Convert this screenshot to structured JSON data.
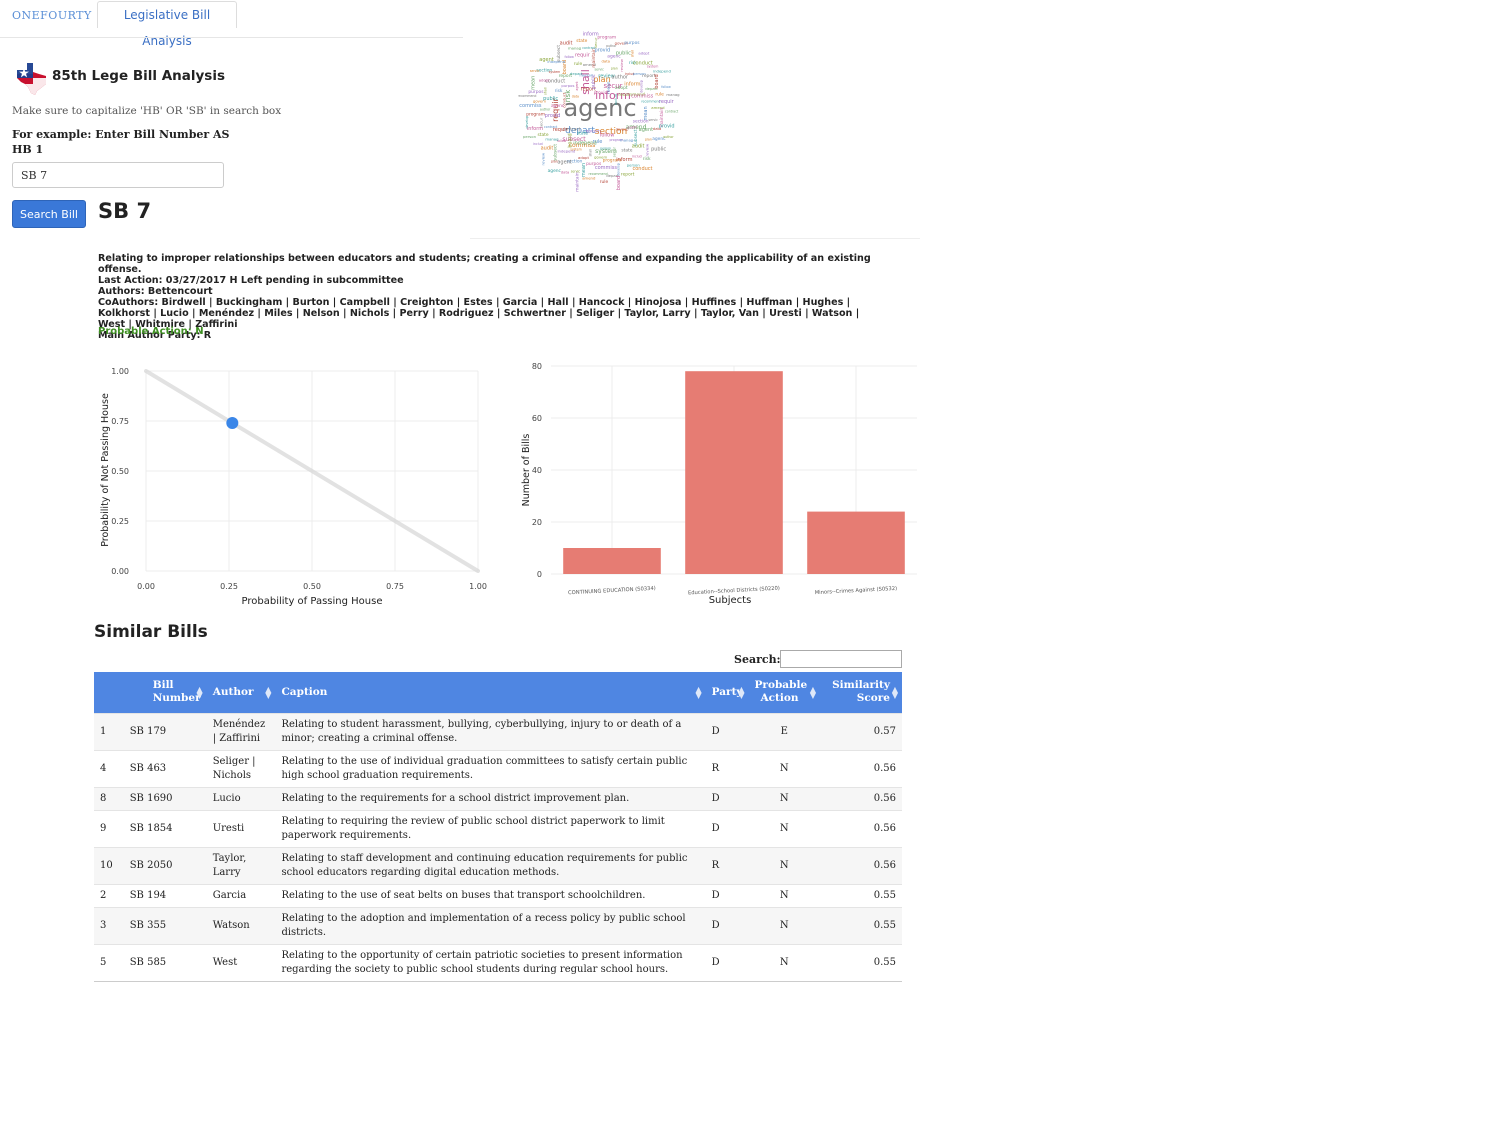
{
  "nav": {
    "brand": "ONEFOURTY",
    "tab": "Legislative Bill Analysis"
  },
  "app": {
    "title": "85th Lege Bill Analysis",
    "hint": "Make sure to capitalize 'HB' OR 'SB' in search box",
    "example": "For example: Enter Bill Number AS HB 1",
    "search_value": "SB 7",
    "search_button": "Search Bill"
  },
  "bill": {
    "number": "SB 7",
    "caption": "Relating to improper relationships between educators and students; creating a criminal offense and expanding the applicability of an existing offense.",
    "last_action": "Last Action: 03/27/2017 H Left pending in subcommittee",
    "authors": "Authors: Bettencourt",
    "coauthors": "CoAuthors: Birdwell | Buckingham | Burton | Campbell | Creighton | Estes | Garcia | Hall | Hancock | Hinojosa | Huffines | Huffman | Hughes | Kolkhorst | Lucio | Menéndez | Miles | Nelson | Nichols | Perry | Rodriguez | Schwertner | Seliger | Taylor, Larry | Taylor, Van | Uresti | Watson | West | Whitmire | Zaffirini",
    "party": "Main Author Party: R",
    "probable_action": "Probable Action: N"
  },
  "colors": {
    "accent": "#3a78d8",
    "table_header": "#4f86e2",
    "bar": "#e67c73",
    "point": "#3a86e8",
    "probable_action": "#3f8f23"
  },
  "chart_data": [
    {
      "type": "scatter",
      "xlabel": "Probability of Passing House",
      "ylabel": "Probability of Not Passing House",
      "xlim": [
        0,
        1
      ],
      "ylim": [
        0,
        1
      ],
      "x_ticks": [
        "0.00",
        "0.25",
        "0.50",
        "0.75",
        "1.00"
      ],
      "y_ticks": [
        "0.00",
        "0.25",
        "0.50",
        "0.75",
        "1.00"
      ],
      "reference_line": [
        [
          0,
          1
        ],
        [
          1,
          0
        ]
      ],
      "points": [
        {
          "x": 0.26,
          "y": 0.74
        }
      ],
      "grid": true
    },
    {
      "type": "bar",
      "xlabel": "Subjects",
      "ylabel": "Number of Bills",
      "ylim": [
        0,
        80
      ],
      "y_ticks": [
        "0",
        "20",
        "40",
        "60",
        "80"
      ],
      "categories": [
        "CONTINUING EDUCATION (S0334)",
        "Education--School Districts (S0220)",
        "Minors--Crimes Against (S0532)"
      ],
      "values": [
        10,
        78,
        24
      ],
      "grid": true
    }
  ],
  "similar": {
    "title": "Similar Bills",
    "search_label": "Search:",
    "columns": [
      {
        "label": "",
        "align": "left"
      },
      {
        "label": "Bill Number",
        "align": "left"
      },
      {
        "label": "Author",
        "align": "left"
      },
      {
        "label": "Caption",
        "align": "left"
      },
      {
        "label": "Party",
        "align": "left"
      },
      {
        "label": "Probable Action",
        "align": "left"
      },
      {
        "label": "Similarity Score",
        "align": "right"
      }
    ],
    "rows": [
      [
        "1",
        "SB 179",
        "Menéndez | Zaffirini",
        "Relating to student harassment, bullying, cyberbullying, injury to or death of a minor; creating a criminal offense.",
        "D",
        "E",
        "0.57"
      ],
      [
        "4",
        "SB 463",
        "Seliger | Nichols",
        "Relating to the use of individual graduation committees to satisfy certain public high school graduation requirements.",
        "R",
        "N",
        "0.56"
      ],
      [
        "8",
        "SB 1690",
        "Lucio",
        "Relating to the requirements for a school district improvement plan.",
        "D",
        "N",
        "0.56"
      ],
      [
        "9",
        "SB 1854",
        "Uresti",
        "Relating to requiring the review of public school district paperwork to limit paperwork requirements.",
        "D",
        "N",
        "0.56"
      ],
      [
        "10",
        "SB 2050",
        "Taylor, Larry",
        "Relating to staff development and continuing education requirements for public school educators regarding digital education methods.",
        "R",
        "N",
        "0.56"
      ],
      [
        "2",
        "SB 194",
        "Garcia",
        "Relating to the use of seat belts on buses that transport schoolchildren.",
        "D",
        "N",
        "0.55"
      ],
      [
        "3",
        "SB 355",
        "Watson",
        "Relating to the adoption and implementation of a recess policy by public school districts.",
        "D",
        "N",
        "0.55"
      ],
      [
        "5",
        "SB 585",
        "West",
        "Relating to the opportunity of certain patriotic societies to present information regarding the society to public school students during regular school hours.",
        "D",
        "N",
        "0.55"
      ]
    ]
  },
  "wordcloud": {
    "words": [
      "agenc",
      "inform",
      "shall",
      "depart",
      "section",
      "requir",
      "plan",
      "secur",
      "risk",
      "commiss",
      "system",
      "amend",
      "subsect",
      "provid",
      "includ",
      "govern",
      "report",
      "mean",
      "follow",
      "data",
      "state",
      "public",
      "develop",
      "adopt",
      "rule",
      "agent",
      "contract",
      "review",
      "program",
      "conduct",
      "recommend",
      "independ",
      "maintain",
      "audit",
      "author",
      "person",
      "purpos",
      "board",
      "servic",
      "manag"
    ]
  }
}
